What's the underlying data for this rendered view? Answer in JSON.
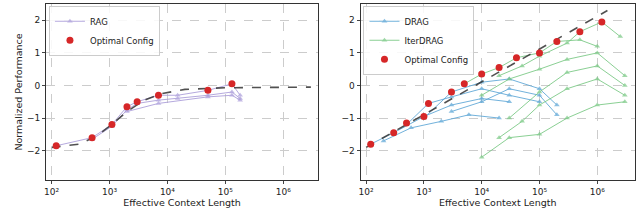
{
  "chart_data": [
    {
      "type": "line",
      "xlabel": "Effective Context Length",
      "ylabel": "Normalized Performance",
      "log": "x",
      "grid": true,
      "legend": "upper left",
      "xlim": [
        80,
        4000000
      ],
      "ylim": [
        -2.9,
        2.5
      ],
      "xticks": [
        {
          "value": 100,
          "label": "10²"
        },
        {
          "value": 1000,
          "label": "10³"
        },
        {
          "value": 10000,
          "label": "10⁴"
        },
        {
          "value": 100000,
          "label": "10⁵"
        },
        {
          "value": 1000000,
          "label": "10⁶"
        }
      ],
      "yticks": [
        {
          "value": -2,
          "label": "−2"
        },
        {
          "value": -1,
          "label": "−1"
        },
        0,
        1,
        2
      ],
      "series": [
        {
          "name": "RAG",
          "color": "#a99bd9",
          "marker": "triangle",
          "line_style": "solid",
          "x": [
            120,
            500,
            1100,
            2000,
            3000,
            7000,
            15000,
            50000,
            130000,
            180000
          ],
          "values": [
            -1.85,
            -1.6,
            -1.2,
            -0.65,
            -0.5,
            -0.3,
            -0.3,
            -0.15,
            0.05,
            -0.3
          ]
        },
        {
          "name": "RAG",
          "color": "#a99bd9",
          "marker": "triangle",
          "line_style": "solid",
          "x": [
            500,
            1100,
            2000,
            3000,
            7000,
            15000,
            50000,
            130000,
            180000
          ],
          "values": [
            -1.65,
            -1.25,
            -0.75,
            -0.55,
            -0.45,
            -0.4,
            -0.3,
            -0.2,
            -0.4
          ]
        },
        {
          "name": "RAG",
          "color": "#a99bd9",
          "marker": "triangle",
          "line_style": "solid",
          "x": [
            2000,
            7000,
            50000,
            130000,
            180000
          ],
          "values": [
            -0.8,
            -0.55,
            -0.35,
            -0.3,
            -0.45
          ]
        },
        {
          "color": "#333333",
          "line_style": "dashed",
          "x": [
            100,
            300,
            600,
            1000,
            2000,
            4000,
            8000,
            20000,
            100000,
            3000000
          ],
          "values": [
            -1.9,
            -1.8,
            -1.55,
            -1.25,
            -0.8,
            -0.45,
            -0.25,
            -0.12,
            -0.07,
            -0.05
          ]
        },
        {
          "name": "Optimal Config",
          "type": "scatter",
          "color": "#d62728",
          "marker": "circle",
          "x": [
            120,
            500,
            1100,
            2000,
            3000,
            7000,
            50000,
            130000
          ],
          "values": [
            -1.85,
            -1.6,
            -1.2,
            -0.65,
            -0.5,
            -0.3,
            -0.15,
            0.05
          ]
        }
      ]
    },
    {
      "type": "line",
      "xlabel": "Effective Context Length",
      "log": "x",
      "grid": true,
      "legend": "upper left",
      "xlim": [
        80,
        4500000
      ],
      "ylim": [
        -2.9,
        2.5
      ],
      "xticks": [
        {
          "value": 100,
          "label": "10²"
        },
        {
          "value": 1000,
          "label": "10³"
        },
        {
          "value": 10000,
          "label": "10⁴"
        },
        {
          "value": 100000,
          "label": "10⁵"
        },
        {
          "value": 1000000,
          "label": "10⁶"
        }
      ],
      "yticks": [
        {
          "value": -2,
          "label": "−2"
        },
        {
          "value": -1,
          "label": "−1"
        },
        0,
        1,
        2
      ],
      "series": [
        {
          "name": "DRAG",
          "color": "#5aa5d6",
          "marker": "triangle",
          "line_style": "solid",
          "x": [
            120,
            300,
            1000,
            3000,
            10000,
            30000
          ],
          "values": [
            -1.8,
            -1.45,
            -0.95,
            -0.6,
            -0.4,
            -0.5
          ]
        },
        {
          "name": "DRAG",
          "color": "#5aa5d6",
          "marker": "triangle",
          "line_style": "solid",
          "x": [
            500,
            1200,
            3000,
            10000,
            30000,
            100000
          ],
          "values": [
            -1.2,
            -0.55,
            -0.35,
            -0.1,
            -0.3,
            -0.5
          ]
        },
        {
          "name": "DRAG",
          "color": "#5aa5d6",
          "marker": "triangle",
          "line_style": "solid",
          "x": [
            1000,
            3000,
            10000,
            30000,
            100000,
            200000
          ],
          "values": [
            -1.0,
            -0.2,
            0.1,
            0.2,
            -0.1,
            -0.6
          ]
        },
        {
          "name": "DRAG",
          "color": "#5aa5d6",
          "marker": "triangle",
          "line_style": "solid",
          "x": [
            3000,
            10000,
            30000,
            100000,
            200000
          ],
          "values": [
            -0.8,
            -0.5,
            -0.1,
            -0.3,
            -0.9
          ]
        },
        {
          "name": "DRAG",
          "color": "#5aa5d6",
          "marker": "triangle",
          "line_style": "solid",
          "x": [
            200,
            600,
            2000,
            6000,
            20000
          ],
          "values": [
            -1.7,
            -1.3,
            -1.1,
            -0.9,
            -1.0
          ]
        },
        {
          "name": "IterDRAG",
          "color": "#77c882",
          "marker": "triangle",
          "line_style": "solid",
          "x": [
            5000,
            10000,
            20000,
            40000,
            100000,
            200000,
            500000,
            1000000
          ],
          "values": [
            0.05,
            0.35,
            0.55,
            0.85,
            1.0,
            1.35,
            1.4,
            1.2
          ]
        },
        {
          "name": "IterDRAG",
          "color": "#77c882",
          "marker": "triangle",
          "line_style": "solid",
          "x": [
            20000,
            50000,
            100000,
            300000,
            500000,
            1200000,
            2500000
          ],
          "values": [
            0.3,
            0.6,
            0.9,
            1.3,
            1.65,
            1.95,
            1.5
          ]
        },
        {
          "name": "IterDRAG",
          "color": "#77c882",
          "marker": "triangle",
          "line_style": "solid",
          "x": [
            10000,
            30000,
            100000,
            300000,
            1000000,
            3000000
          ],
          "values": [
            -0.3,
            0.2,
            0.5,
            0.8,
            1.0,
            0.3
          ]
        },
        {
          "name": "IterDRAG",
          "color": "#77c882",
          "marker": "triangle",
          "line_style": "solid",
          "x": [
            20000,
            50000,
            100000,
            300000,
            1000000,
            3000000
          ],
          "values": [
            -1.6,
            -1.1,
            -0.6,
            -0.1,
            0.2,
            -0.3
          ]
        },
        {
          "name": "IterDRAG",
          "color": "#77c882",
          "marker": "triangle",
          "line_style": "solid",
          "x": [
            30000,
            100000,
            300000,
            1000000,
            3000000
          ],
          "values": [
            -1.0,
            -0.2,
            0.4,
            0.6,
            0.0
          ]
        },
        {
          "name": "IterDRAG",
          "color": "#77c882",
          "marker": "triangle",
          "line_style": "solid",
          "x": [
            10000,
            30000,
            100000,
            300000,
            1000000,
            3000000
          ],
          "values": [
            -2.2,
            -1.6,
            -1.5,
            -1.0,
            -0.6,
            -0.5
          ]
        },
        {
          "color": "#333333",
          "line_style": "dashed",
          "x": [
            100,
            1500000
          ],
          "values": [
            -1.9,
            2.3
          ]
        },
        {
          "name": "Optimal Config",
          "type": "scatter",
          "color": "#d62728",
          "marker": "circle",
          "x": [
            120,
            300,
            500,
            1000,
            1200,
            3000,
            5000,
            10000,
            20000,
            40000,
            100000,
            200000,
            500000,
            1200000
          ],
          "values": [
            -1.8,
            -1.45,
            -1.15,
            -0.95,
            -0.55,
            -0.2,
            0.05,
            0.35,
            0.55,
            0.85,
            1.0,
            1.35,
            1.65,
            1.95
          ]
        }
      ]
    }
  ]
}
